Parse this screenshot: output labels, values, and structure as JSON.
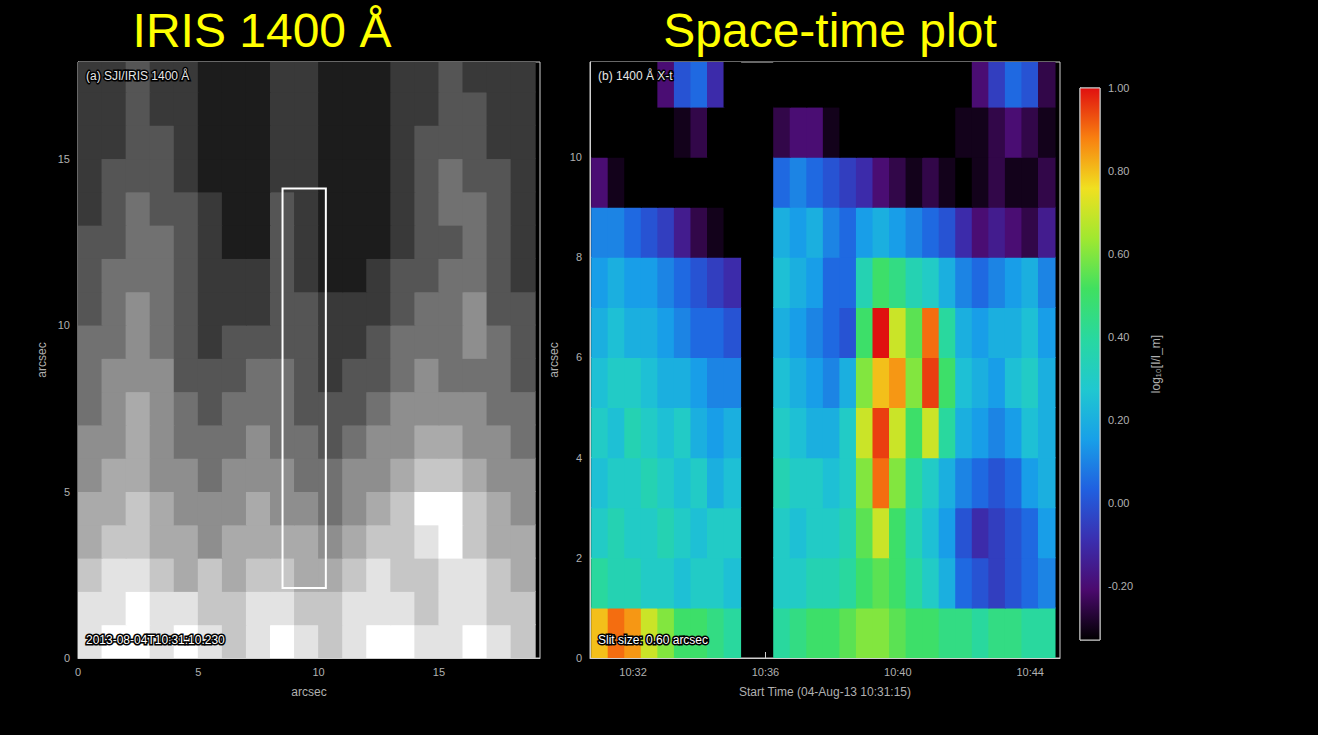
{
  "chart_data": [
    {
      "type": "heatmap",
      "title": "IRIS 1400 Å",
      "annotations": [
        "(a) SJI/IRIS 1400 Å",
        "2013-08-04T10:31:10.230"
      ],
      "x_label": "arcsec",
      "y_label": "arcsec",
      "xlim": [
        0,
        19.2
      ],
      "xticks": [
        0,
        5,
        10,
        15
      ],
      "ylim": [
        0,
        17.9
      ],
      "yticks": [
        0,
        5,
        10,
        15
      ],
      "zlim": [
        0,
        9
      ],
      "x": [
        0.5,
        1.5,
        2.5,
        3.5,
        4.5,
        5.5,
        6.5,
        7.5,
        8.5,
        9.5,
        10.5,
        11.5,
        12.5,
        13.5,
        14.5,
        15.5,
        16.5,
        17.5,
        18.5
      ],
      "y": [
        0.5,
        1.5,
        2.5,
        3.5,
        4.5,
        5.5,
        6.5,
        7.5,
        8.5,
        9.5,
        10.5,
        11.5,
        12.5,
        13.5,
        14.5,
        15.5,
        16.5,
        17.5
      ],
      "cells": [
        [
          8,
          9,
          9,
          8,
          9,
          8,
          7,
          8,
          9,
          8,
          7,
          8,
          9,
          9,
          8,
          8,
          9,
          8,
          7
        ],
        [
          8,
          8,
          9,
          8,
          8,
          7,
          7,
          8,
          8,
          7,
          7,
          8,
          8,
          8,
          7,
          8,
          8,
          7,
          7
        ],
        [
          7,
          8,
          8,
          7,
          6,
          7,
          6,
          7,
          7,
          6,
          6,
          7,
          8,
          7,
          7,
          8,
          8,
          7,
          6
        ],
        [
          6,
          7,
          7,
          6,
          6,
          5,
          6,
          6,
          6,
          6,
          5,
          6,
          7,
          7,
          8,
          9,
          7,
          6,
          6
        ],
        [
          6,
          6,
          7,
          6,
          5,
          5,
          5,
          6,
          5,
          5,
          4,
          5,
          6,
          7,
          9,
          9,
          7,
          6,
          5
        ],
        [
          5,
          6,
          6,
          5,
          5,
          4,
          5,
          5,
          5,
          4,
          4,
          5,
          5,
          6,
          7,
          7,
          6,
          5,
          5
        ],
        [
          5,
          5,
          6,
          5,
          4,
          4,
          4,
          5,
          4,
          4,
          3,
          4,
          5,
          5,
          6,
          6,
          5,
          5,
          4
        ],
        [
          4,
          5,
          6,
          5,
          4,
          3,
          4,
          4,
          4,
          3,
          3,
          3,
          4,
          5,
          5,
          5,
          5,
          4,
          4
        ],
        [
          4,
          5,
          5,
          5,
          3,
          3,
          3,
          4,
          4,
          3,
          2,
          3,
          3,
          4,
          5,
          4,
          4,
          4,
          3
        ],
        [
          4,
          4,
          5,
          4,
          3,
          2,
          3,
          3,
          3,
          3,
          2,
          2,
          3,
          4,
          4,
          4,
          5,
          4,
          3
        ],
        [
          3,
          4,
          5,
          4,
          3,
          2,
          2,
          2,
          3,
          3,
          2,
          2,
          2,
          3,
          4,
          4,
          5,
          3,
          3
        ],
        [
          3,
          4,
          4,
          4,
          3,
          2,
          2,
          2,
          3,
          2,
          1,
          1,
          2,
          3,
          3,
          4,
          4,
          3,
          2
        ],
        [
          3,
          3,
          4,
          4,
          3,
          2,
          1,
          1,
          3,
          2,
          1,
          1,
          1,
          2,
          3,
          3,
          4,
          3,
          2
        ],
        [
          2,
          3,
          4,
          3,
          3,
          2,
          1,
          1,
          3,
          2,
          1,
          1,
          1,
          2,
          3,
          4,
          4,
          3,
          2
        ],
        [
          2,
          3,
          3,
          3,
          2,
          1,
          1,
          1,
          2,
          2,
          1,
          1,
          1,
          2,
          3,
          4,
          3,
          3,
          2
        ],
        [
          2,
          2,
          3,
          3,
          2,
          1,
          1,
          1,
          2,
          2,
          1,
          1,
          1,
          2,
          3,
          3,
          3,
          2,
          2
        ],
        [
          2,
          2,
          3,
          2,
          2,
          1,
          1,
          1,
          2,
          2,
          1,
          1,
          1,
          2,
          2,
          3,
          3,
          2,
          2
        ],
        [
          2,
          2,
          3,
          2,
          2,
          1,
          1,
          1,
          2,
          2,
          1,
          1,
          1,
          2,
          2,
          3,
          2,
          2,
          2
        ]
      ],
      "box": {
        "x": [
          8.5,
          10.3
        ],
        "y": [
          2.1,
          14.1
        ]
      }
    },
    {
      "type": "heatmap",
      "title": "Space-time plot",
      "annotations": [
        "(b) 1400 Å X-t",
        "Slit size: 0.60 arcsec"
      ],
      "x_label": "Start Time (04-Aug-13 10:31:15)",
      "y_label": "arcsec",
      "xlim": [
        30.7,
        44.9
      ],
      "xticks": [
        {
          "value": 32,
          "label": "10:32"
        },
        {
          "value": 36,
          "label": "10:36"
        },
        {
          "value": 40,
          "label": "10:40"
        },
        {
          "value": 44,
          "label": "10:44"
        }
      ],
      "ylim": [
        0,
        11.9
      ],
      "yticks": [
        0,
        2,
        4,
        6,
        8,
        10
      ],
      "x": [
        31,
        31.5,
        32,
        32.5,
        33,
        33.5,
        34,
        34.5,
        35,
        35.5,
        36,
        36.5,
        37,
        37.5,
        38,
        38.5,
        39,
        39.5,
        40,
        40.5,
        41,
        41.5,
        42,
        42.5,
        43,
        43.5,
        44,
        44.5
      ],
      "y": [
        0.5,
        1.5,
        2.5,
        3.5,
        4.5,
        5.5,
        6.5,
        7.5,
        8.5,
        9.5,
        10.5,
        11.5
      ],
      "cells": [
        [
          0.8,
          0.9,
          0.85,
          0.7,
          0.6,
          0.5,
          0.5,
          0.45,
          0.4,
          null,
          null,
          0.4,
          0.45,
          0.5,
          0.5,
          0.55,
          0.6,
          0.6,
          0.55,
          0.5,
          0.5,
          0.45,
          0.45,
          0.4,
          0.45,
          0.45,
          0.4,
          0.4
        ],
        [
          0.4,
          0.35,
          0.35,
          0.3,
          0.3,
          0.25,
          0.3,
          0.3,
          0.25,
          null,
          null,
          0.3,
          0.3,
          0.35,
          0.35,
          0.4,
          0.5,
          0.55,
          0.5,
          0.4,
          0.3,
          0.2,
          0.05,
          0.0,
          -0.05,
          0.0,
          0.05,
          0.1
        ],
        [
          0.3,
          0.35,
          0.3,
          0.3,
          0.35,
          0.3,
          0.25,
          0.3,
          0.3,
          null,
          null,
          0.3,
          0.25,
          0.3,
          0.3,
          0.35,
          0.55,
          0.7,
          0.5,
          0.35,
          0.25,
          0.15,
          0.0,
          -0.1,
          -0.05,
          0.0,
          0.05,
          0.15
        ],
        [
          0.25,
          0.3,
          0.3,
          0.35,
          0.3,
          0.25,
          0.3,
          0.2,
          0.25,
          null,
          null,
          0.35,
          0.3,
          0.3,
          0.25,
          0.3,
          0.6,
          0.9,
          0.6,
          0.4,
          0.3,
          0.2,
          0.1,
          0.05,
          0.0,
          0.05,
          0.15,
          0.2
        ],
        [
          0.3,
          0.25,
          0.35,
          0.3,
          0.25,
          0.3,
          0.2,
          0.15,
          0.2,
          null,
          null,
          0.3,
          0.25,
          0.2,
          0.2,
          0.3,
          0.7,
          0.95,
          0.7,
          0.5,
          0.7,
          0.4,
          0.2,
          0.15,
          0.1,
          0.15,
          0.25,
          0.2
        ],
        [
          0.25,
          0.3,
          0.3,
          0.25,
          0.2,
          0.2,
          0.15,
          0.1,
          0.1,
          null,
          null,
          0.25,
          0.2,
          0.15,
          0.1,
          0.2,
          0.6,
          0.8,
          0.85,
          0.6,
          0.95,
          0.5,
          0.25,
          0.2,
          0.15,
          0.25,
          0.3,
          0.2
        ],
        [
          0.2,
          0.25,
          0.2,
          0.2,
          0.15,
          0.1,
          0.05,
          0.05,
          0.0,
          null,
          null,
          0.2,
          0.15,
          0.1,
          0.05,
          0.0,
          0.5,
          1.0,
          0.7,
          0.55,
          0.9,
          0.4,
          0.2,
          0.15,
          0.2,
          0.2,
          0.25,
          0.15
        ],
        [
          0.15,
          0.2,
          0.15,
          0.15,
          0.1,
          0.05,
          0.0,
          -0.05,
          -0.1,
          null,
          null,
          0.25,
          0.2,
          0.15,
          0.05,
          0.05,
          0.35,
          0.5,
          0.45,
          0.35,
          0.3,
          0.2,
          0.1,
          0.05,
          0.1,
          0.15,
          0.2,
          0.1
        ],
        [
          0.1,
          0.1,
          0.05,
          0.0,
          -0.05,
          -0.15,
          -0.25,
          -0.3,
          -0.4,
          null,
          null,
          0.2,
          0.15,
          0.2,
          0.1,
          0.05,
          0.15,
          0.2,
          0.15,
          0.1,
          0.05,
          0.0,
          -0.1,
          -0.2,
          -0.15,
          -0.2,
          -0.25,
          -0.15
        ],
        [
          -0.2,
          -0.3,
          -0.4,
          -0.5,
          -0.5,
          -0.5,
          -0.5,
          -0.5,
          -0.5,
          null,
          null,
          0.05,
          0.1,
          0.05,
          0.0,
          -0.05,
          -0.1,
          -0.2,
          -0.25,
          -0.3,
          -0.25,
          -0.3,
          -0.35,
          -0.3,
          -0.25,
          -0.3,
          -0.3,
          -0.25
        ],
        [
          -0.5,
          -0.5,
          -0.5,
          -0.5,
          -0.4,
          -0.3,
          -0.25,
          -0.35,
          -0.5,
          null,
          null,
          -0.25,
          -0.2,
          -0.2,
          -0.3,
          -0.35,
          -0.4,
          -0.45,
          -0.45,
          -0.5,
          -0.45,
          -0.35,
          -0.3,
          -0.3,
          -0.25,
          -0.2,
          -0.25,
          -0.3
        ],
        [
          -0.5,
          -0.5,
          -0.5,
          -0.45,
          -0.2,
          0.0,
          0.05,
          -0.1,
          -0.4,
          null,
          null,
          -0.45,
          -0.4,
          -0.45,
          -0.5,
          -0.5,
          -0.5,
          -0.5,
          -0.5,
          -0.5,
          -0.5,
          -0.45,
          -0.35,
          -0.2,
          -0.05,
          0.05,
          0.0,
          -0.25
        ]
      ],
      "colorbar": {
        "label": "log₁₀[I/I_m]",
        "range": [
          -0.33,
          1.0
        ],
        "ticks": [
          {
            "value": -0.2,
            "label": "-0.20"
          },
          {
            "value": 0,
            "label": "0.00"
          },
          {
            "value": 0.2,
            "label": "0.20"
          },
          {
            "value": 0.4,
            "label": "0.40"
          },
          {
            "value": 0.6,
            "label": "0.60"
          },
          {
            "value": 0.8,
            "label": "0.80"
          },
          {
            "value": 1.0,
            "label": "1.00"
          }
        ]
      }
    }
  ]
}
